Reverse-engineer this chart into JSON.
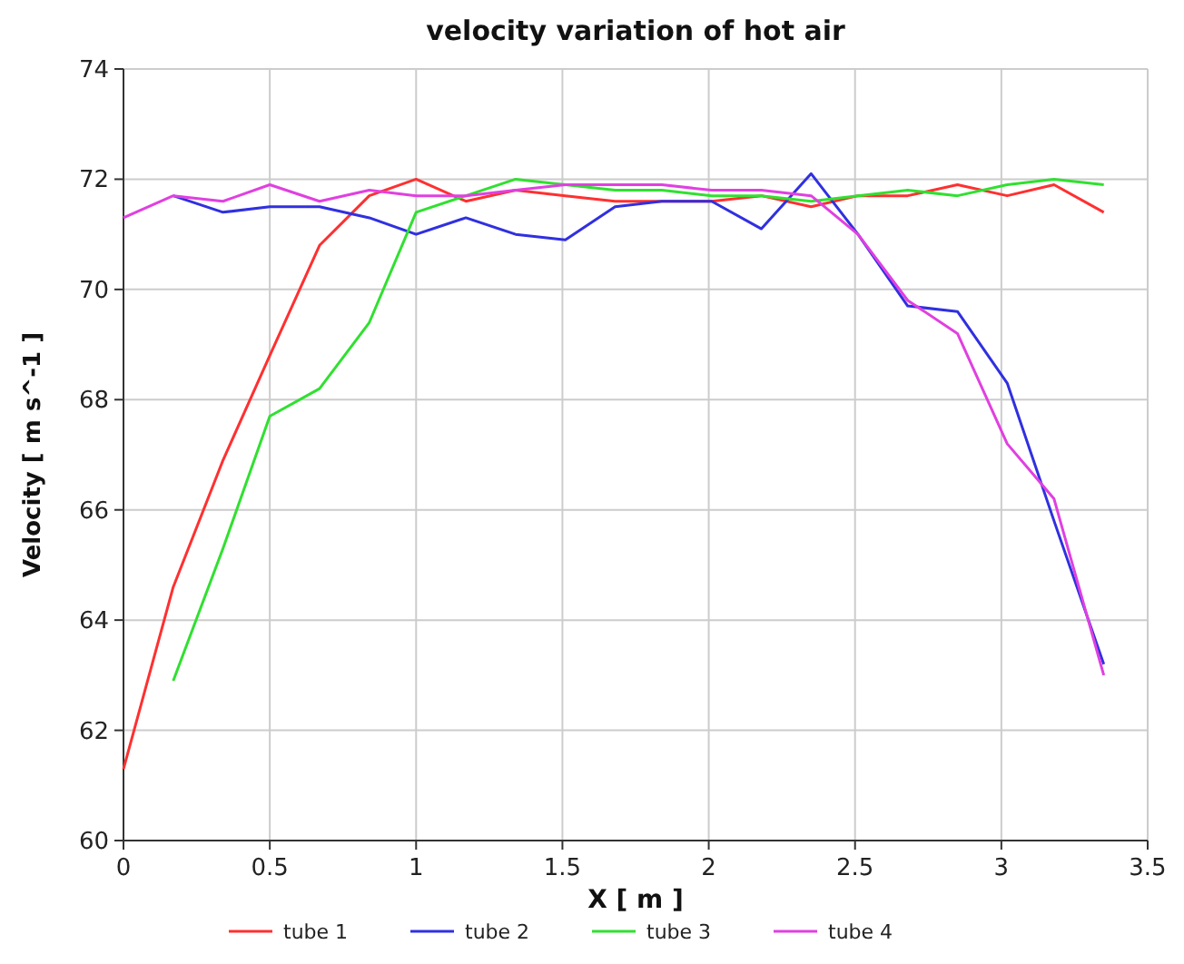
{
  "chart_data": {
    "type": "line",
    "title": "velocity variation of hot air",
    "xlabel": "X [ m ]",
    "ylabel": "Velocity [ m s^-1 ]",
    "xlim": [
      0,
      3.5
    ],
    "xticks": [
      0,
      0.5,
      1,
      1.5,
      2,
      2.5,
      3,
      3.5
    ],
    "ylim": [
      60,
      74
    ],
    "yticks": [
      60,
      62,
      64,
      66,
      68,
      70,
      72,
      74
    ],
    "grid": true,
    "legend": "bottom",
    "marker": "none",
    "line_style": "solid",
    "series": [
      {
        "name": "tube 1",
        "color": "#ff3030",
        "x": [
          0,
          0.17,
          0.34,
          0.5,
          0.67,
          0.84,
          1.0,
          1.17,
          1.34,
          1.51,
          1.68,
          1.84,
          2.01,
          2.18,
          2.35,
          2.51,
          2.68,
          2.85,
          3.02,
          3.18,
          3.35
        ],
        "values": [
          61.3,
          64.6,
          66.9,
          68.8,
          70.8,
          71.7,
          72.0,
          71.6,
          71.8,
          71.7,
          71.6,
          71.6,
          71.6,
          71.7,
          71.5,
          71.7,
          71.7,
          71.9,
          71.7,
          71.9,
          71.4
        ]
      },
      {
        "name": "tube 2",
        "color": "#3030e0",
        "x": [
          0.17,
          0.34,
          0.5,
          0.67,
          0.84,
          1.0,
          1.17,
          1.34,
          1.51,
          1.68,
          1.84,
          2.01,
          2.18,
          2.35,
          2.51,
          2.68,
          2.85,
          3.02,
          3.18,
          3.35
        ],
        "values": [
          71.7,
          71.4,
          71.5,
          71.5,
          71.3,
          71.0,
          71.3,
          71.0,
          70.9,
          71.5,
          71.6,
          71.6,
          71.1,
          72.1,
          71.0,
          69.7,
          69.6,
          68.3,
          65.8,
          63.2
        ]
      },
      {
        "name": "tube 3",
        "color": "#30e030",
        "x": [
          0.17,
          0.34,
          0.5,
          0.67,
          0.84,
          1.0,
          1.17,
          1.34,
          1.51,
          1.68,
          1.84,
          2.01,
          2.18,
          2.35,
          2.51,
          2.68,
          2.85,
          3.02,
          3.18,
          3.35
        ],
        "values": [
          62.9,
          65.3,
          67.7,
          68.2,
          69.4,
          71.4,
          71.7,
          72.0,
          71.9,
          71.8,
          71.8,
          71.7,
          71.7,
          71.6,
          71.7,
          71.8,
          71.7,
          71.9,
          72.0,
          71.9
        ]
      },
      {
        "name": "tube 4",
        "color": "#e040e0",
        "x": [
          0,
          0.17,
          0.34,
          0.5,
          0.67,
          0.84,
          1.0,
          1.17,
          1.34,
          1.51,
          1.68,
          1.84,
          2.01,
          2.18,
          2.35,
          2.51,
          2.68,
          2.85,
          3.02,
          3.18,
          3.35
        ],
        "values": [
          71.3,
          71.7,
          71.6,
          71.9,
          71.6,
          71.8,
          71.7,
          71.7,
          71.8,
          71.9,
          71.9,
          71.9,
          71.8,
          71.8,
          71.7,
          71.0,
          69.8,
          69.2,
          67.2,
          66.2,
          63.0
        ]
      }
    ]
  }
}
